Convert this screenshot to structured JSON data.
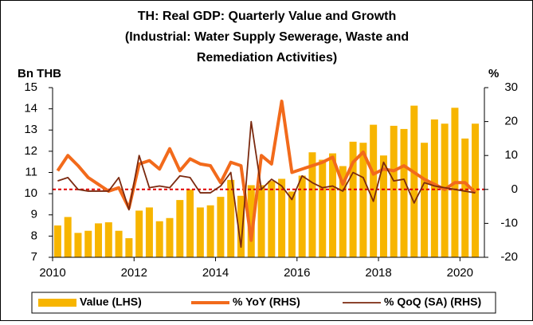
{
  "chart_data": {
    "type": "bar-line",
    "title": [
      "TH: Real GDP: Quarterly Value and Growth",
      "(Industrial: Water Supply Sewerage, Waste and",
      "Remediation Activities)"
    ],
    "y_label": "Bn THB",
    "y2_label": "%",
    "x": [
      2010.125,
      2010.375,
      2010.625,
      2010.875,
      2011.125,
      2011.375,
      2011.625,
      2011.875,
      2012.125,
      2012.375,
      2012.625,
      2012.875,
      2013.125,
      2013.375,
      2013.625,
      2013.875,
      2014.125,
      2014.375,
      2014.625,
      2014.875,
      2015.125,
      2015.375,
      2015.625,
      2015.875,
      2016.125,
      2016.375,
      2016.625,
      2016.875,
      2017.125,
      2017.375,
      2017.625,
      2017.875,
      2018.125,
      2018.375,
      2018.625,
      2018.875,
      2019.125,
      2019.375,
      2019.625,
      2019.875,
      2020.125,
      2020.375
    ],
    "series": [
      {
        "name": "Value (LHS)",
        "kind": "bar",
        "axis": "y",
        "color": "#f7b500",
        "values": [
          8.5,
          8.9,
          8.15,
          8.25,
          8.6,
          8.65,
          8.25,
          7.9,
          9.2,
          9.35,
          8.7,
          8.85,
          9.7,
          10.2,
          9.35,
          9.45,
          9.85,
          10.65,
          9.9,
          10.4,
          10.4,
          10.6,
          10.7,
          10.1,
          10.85,
          11.95,
          11.6,
          11.9,
          11.3,
          12.45,
          12.4,
          13.25,
          11.8,
          13.2,
          13.05,
          14.15,
          12.4,
          13.5,
          13.3,
          14.05,
          12.6,
          13.3
        ]
      },
      {
        "name": "% YoY (RHS)",
        "kind": "line",
        "axis": "y2",
        "color": "#f26a1b",
        "values": [
          5.5,
          10,
          7,
          3.5,
          1.5,
          -0.5,
          0.5,
          -5.5,
          7.5,
          8.5,
          6,
          12,
          5.5,
          9,
          7.5,
          7,
          2,
          8,
          7,
          -15,
          10,
          7.5,
          26,
          5,
          6,
          7,
          8,
          9.5,
          1.5,
          8,
          11,
          4.5,
          6,
          5.5,
          7,
          5,
          3,
          1.5,
          0,
          2,
          2,
          -1
        ]
      },
      {
        "name": "% QoQ (SA) (RHS)",
        "kind": "line",
        "axis": "y2",
        "color": "#7b2a10",
        "values": [
          2.5,
          3.5,
          0,
          -0.5,
          -0.5,
          -0.5,
          3.5,
          -6,
          10,
          0.5,
          1,
          0.5,
          4,
          3.5,
          -1,
          -1,
          1,
          5,
          -17,
          20,
          0,
          3,
          1,
          -3,
          4,
          2,
          0.5,
          1,
          -0.5,
          5,
          3.5,
          -3.5,
          8,
          2.5,
          3,
          -4,
          2,
          1,
          0.5,
          0,
          -0.5,
          -1
        ]
      }
    ],
    "reference_line": {
      "value": 0,
      "axis": "y2",
      "color": "#e00000"
    },
    "xlim": [
      2010,
      2020.6
    ],
    "xticks": [
      2010,
      2012,
      2014,
      2016,
      2018,
      2020
    ],
    "ylim": [
      7,
      15
    ],
    "yticks": [
      7,
      8,
      9,
      10,
      11,
      12,
      13,
      14,
      15
    ],
    "y2lim": [
      -20,
      30
    ],
    "y2ticks": [
      -20,
      -10,
      0,
      10,
      20,
      30
    ],
    "legend": "bottom"
  }
}
